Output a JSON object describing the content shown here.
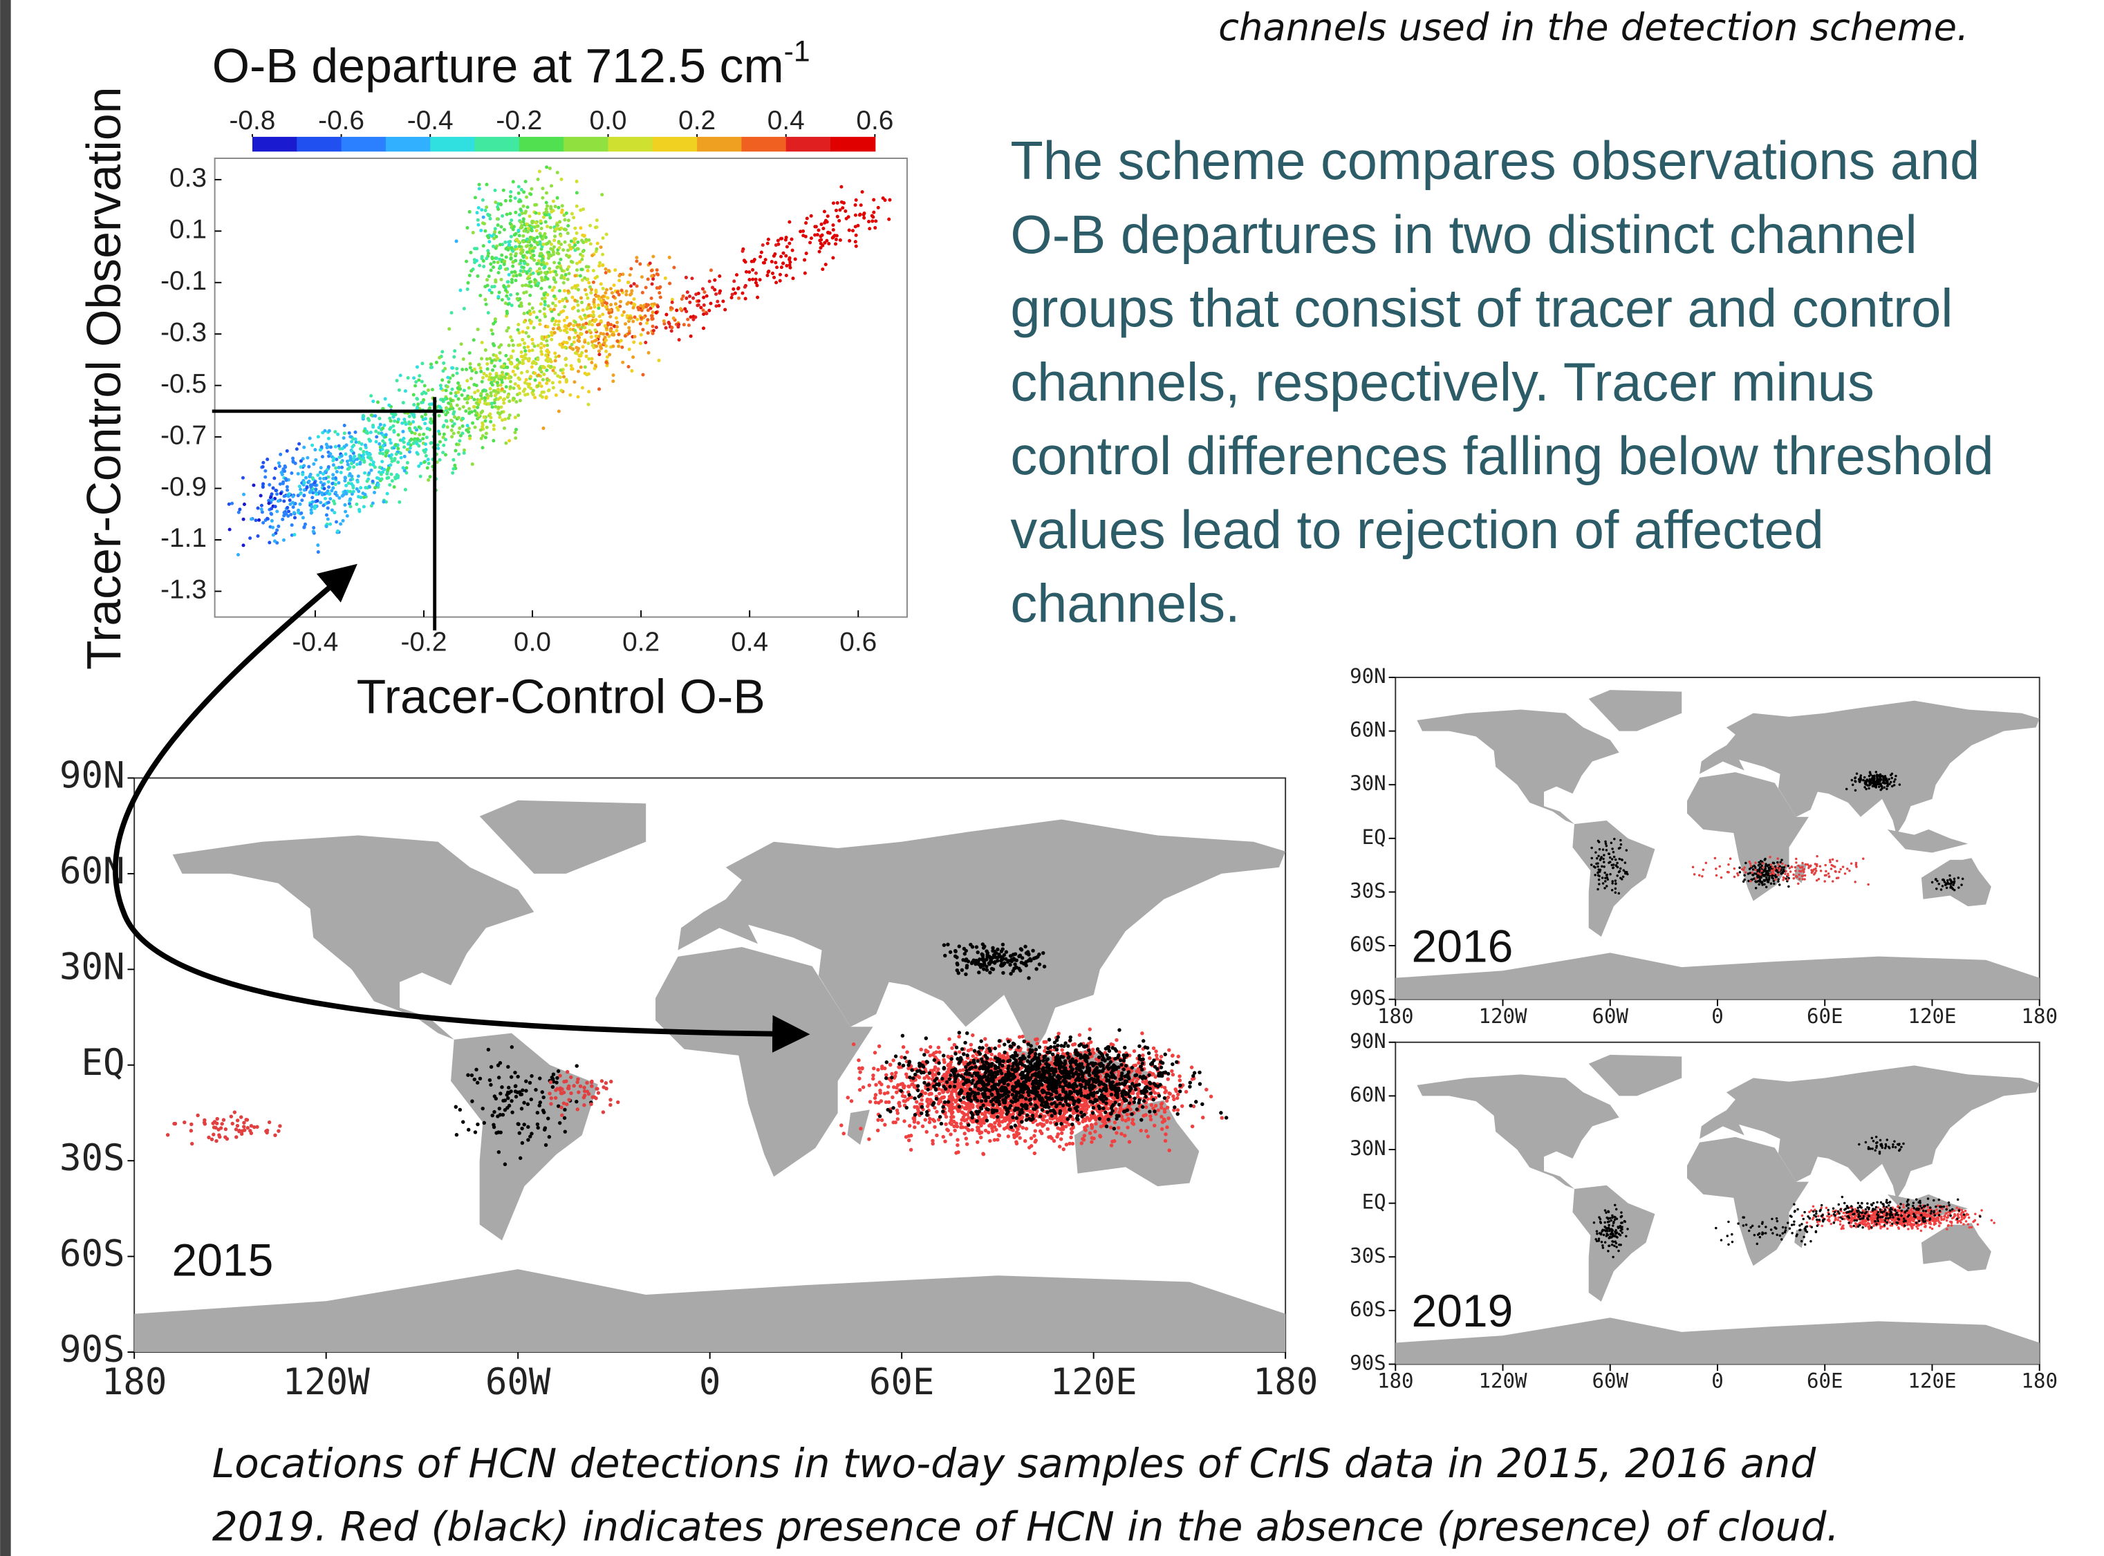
{
  "top_caption": "channels used in the detection scheme.",
  "body_text": [
    "The scheme compares observations and",
    "O-B departures in two distinct channel",
    "groups that consist of tracer and control",
    "channels, respectively. Tracer minus",
    "control differences falling below threshold",
    "values lead to rejection of affected",
    "channels."
  ],
  "chart_data": {
    "type": "scatter",
    "title": "O-B departure at 712.5 cm",
    "title_sup": "-1",
    "xlabel": "Tracer-Control O-B",
    "ylabel": "Tracer-Control Observation",
    "xlim": [
      -0.585,
      0.69
    ],
    "ylim": [
      -1.4,
      0.383
    ],
    "xticks": [
      -0.4,
      -0.2,
      {
        "value": 0,
        "label": "0.0"
      },
      0.2,
      0.4,
      0.6
    ],
    "yticks": [
      0.3,
      0.1,
      -0.1,
      -0.3,
      -0.5,
      -0.7,
      -0.9,
      -1.1,
      -1.3
    ],
    "colorbar_lim": [
      -0.8,
      0.6
    ],
    "colorbar_ticks": [
      -0.8,
      -0.6,
      -0.4,
      -0.2,
      {
        "value": 0,
        "label": "0.0"
      },
      0.2,
      0.4,
      0.6
    ],
    "colorbar_colors": [
      "#1a1ad0",
      "#2050f0",
      "#2a80ff",
      "#30b0ff",
      "#30e0e0",
      "#40e8a0",
      "#50e050",
      "#90e040",
      "#d0e030",
      "#f0d020",
      "#f0a020",
      "#f06020",
      "#e02020",
      "#e00000"
    ],
    "thresholds": {
      "x": -0.18,
      "y": -0.6
    }
  },
  "maps": {
    "lat_labels": [
      "90N",
      "60N",
      "30N",
      "EQ",
      "30S",
      "60S",
      "90S"
    ],
    "lon_labels": [
      "180",
      "120W",
      "60W",
      "0",
      "60E",
      "120E",
      "180"
    ],
    "panels": [
      {
        "year": "2015"
      },
      {
        "year": "2016"
      },
      {
        "year": "2019"
      }
    ]
  },
  "caption": [
    "Locations of HCN detections in two-day samples of CrIS data in 2015, 2016 and",
    "2019. Red (black) indicates presence of HCN in the absence (presence) of cloud."
  ]
}
